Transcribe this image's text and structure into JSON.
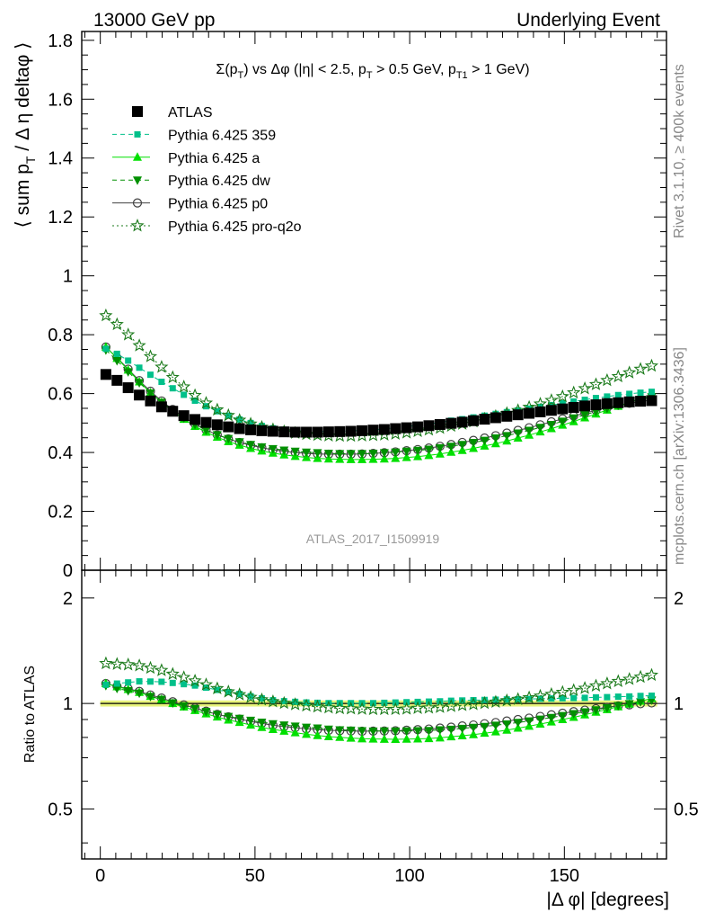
{
  "header": {
    "left": "13000 GeV pp",
    "right": "Underlying Event"
  },
  "side": {
    "rivet": "Rivet 3.1.10, ≥ 400k events",
    "mcplots": "mcplots.cern.ch [arXiv:1306.3436]"
  },
  "chart_data": {
    "type": "scatter",
    "title_parts": {
      "sigma": "Σ(p",
      "sub_t": "T",
      "mid": ") vs Δφ (|η| < 2.5, p",
      "sub_t2": "T",
      "mid2": " > 0.5 GeV, p",
      "sub_t1": "T1",
      "end": " > 1 GeV)"
    },
    "watermark": "ATLAS_2017_I1509919",
    "xlabel": "|Δ φ| [degrees]",
    "ylabel_parts": {
      "a": "⟨ sum p",
      "sub": "T",
      "b": " / Δ η deltaφ ⟩"
    },
    "ratio_ylabel": "Ratio to ATLAS",
    "xlim": [
      -6,
      183
    ],
    "xticks": [
      0,
      50,
      100,
      150
    ],
    "top_ylim": [
      0,
      1.83
    ],
    "top_yticks": [
      0,
      0.2,
      0.4,
      0.6,
      0.8,
      1,
      1.2,
      1.4,
      1.6,
      1.8
    ],
    "top_ytick_labels": [
      "0",
      "0.2",
      "0.4",
      "0.6",
      "0.8",
      "1",
      "1.2",
      "1.4",
      "1.6",
      "1.8"
    ],
    "ratio_ylim": [
      0.36,
      2.4
    ],
    "ratio_log": true,
    "ratio_yticks": [
      0.5,
      1,
      2
    ],
    "ratio_ytick_labels": [
      "0.5",
      "1",
      "2"
    ],
    "legend_position": "top-left",
    "legend": [
      {
        "key": "atlas",
        "label": "ATLAS"
      },
      {
        "key": "p359",
        "label": "Pythia 6.425 359"
      },
      {
        "key": "pa",
        "label": "Pythia 6.425 a"
      },
      {
        "key": "pdw",
        "label": "Pythia 6.425 dw"
      },
      {
        "key": "pp0",
        "label": "Pythia 6.425 p0"
      },
      {
        "key": "pq2o",
        "label": "Pythia 6.425 pro-q2o"
      }
    ],
    "styles": {
      "atlas": {
        "color": "#000000",
        "marker": "square-filled",
        "line": "none"
      },
      "p359": {
        "color": "#00c08a",
        "marker": "square-small",
        "line": "dashed"
      },
      "pa": {
        "color": "#00e000",
        "marker": "triangle-up",
        "line": "solid"
      },
      "pdw": {
        "color": "#009000",
        "marker": "triangle-down",
        "line": "dashed"
      },
      "pp0": {
        "color": "#404040",
        "marker": "circle-open",
        "line": "solid"
      },
      "pq2o": {
        "color": "#1a7a1a",
        "marker": "star-open",
        "line": "dotted"
      }
    },
    "x": [
      1.8,
      5.4,
      9.0,
      12.6,
      16.2,
      19.8,
      23.4,
      27.0,
      30.6,
      34.2,
      37.8,
      41.4,
      45.0,
      48.6,
      52.2,
      55.8,
      59.4,
      63.0,
      66.6,
      70.2,
      73.8,
      77.4,
      81.0,
      84.6,
      88.2,
      91.8,
      95.4,
      99.0,
      102.6,
      106.2,
      109.8,
      113.4,
      117.0,
      120.6,
      124.2,
      127.8,
      131.4,
      135.0,
      138.6,
      142.2,
      145.8,
      149.4,
      153.0,
      156.6,
      160.2,
      163.8,
      167.4,
      171.0,
      174.6,
      178.2
    ],
    "series": [
      {
        "key": "atlas",
        "name": "ATLAS",
        "values": [
          0.665,
          0.645,
          0.62,
          0.595,
          0.575,
          0.555,
          0.54,
          0.525,
          0.512,
          0.502,
          0.494,
          0.487,
          0.481,
          0.477,
          0.474,
          0.472,
          0.47,
          0.469,
          0.469,
          0.469,
          0.47,
          0.471,
          0.472,
          0.474,
          0.476,
          0.478,
          0.481,
          0.484,
          0.487,
          0.491,
          0.495,
          0.499,
          0.503,
          0.508,
          0.513,
          0.518,
          0.523,
          0.528,
          0.533,
          0.538,
          0.543,
          0.548,
          0.553,
          0.558,
          0.562,
          0.566,
          0.569,
          0.572,
          0.574,
          0.576
        ]
      },
      {
        "key": "p359",
        "name": "Pythia 6.425 359",
        "values": [
          0.752,
          0.735,
          0.712,
          0.688,
          0.664,
          0.64,
          0.618,
          0.596,
          0.576,
          0.557,
          0.54,
          0.525,
          0.512,
          0.5,
          0.49,
          0.482,
          0.477,
          0.474,
          0.472,
          0.471,
          0.471,
          0.472,
          0.473,
          0.475,
          0.477,
          0.48,
          0.484,
          0.488,
          0.492,
          0.497,
          0.502,
          0.508,
          0.513,
          0.519,
          0.525,
          0.531,
          0.537,
          0.543,
          0.549,
          0.555,
          0.561,
          0.567,
          0.573,
          0.579,
          0.585,
          0.59,
          0.595,
          0.599,
          0.603,
          0.606
        ]
      },
      {
        "key": "pa",
        "name": "Pythia 6.425 a",
        "values": [
          0.758,
          0.72,
          0.68,
          0.64,
          0.603,
          0.57,
          0.54,
          0.513,
          0.489,
          0.469,
          0.452,
          0.437,
          0.425,
          0.414,
          0.405,
          0.398,
          0.392,
          0.387,
          0.383,
          0.38,
          0.378,
          0.377,
          0.376,
          0.376,
          0.377,
          0.378,
          0.38,
          0.383,
          0.386,
          0.39,
          0.395,
          0.401,
          0.407,
          0.414,
          0.422,
          0.43,
          0.439,
          0.449,
          0.459,
          0.47,
          0.481,
          0.493,
          0.505,
          0.518,
          0.531,
          0.544,
          0.557,
          0.57,
          0.583,
          0.595
        ]
      },
      {
        "key": "pdw",
        "name": "Pythia 6.425 dw",
        "values": [
          0.748,
          0.712,
          0.674,
          0.637,
          0.602,
          0.57,
          0.542,
          0.517,
          0.495,
          0.476,
          0.46,
          0.447,
          0.436,
          0.427,
          0.419,
          0.413,
          0.408,
          0.404,
          0.401,
          0.399,
          0.397,
          0.396,
          0.396,
          0.396,
          0.397,
          0.399,
          0.401,
          0.404,
          0.407,
          0.411,
          0.416,
          0.421,
          0.427,
          0.434,
          0.441,
          0.449,
          0.457,
          0.466,
          0.475,
          0.485,
          0.495,
          0.506,
          0.517,
          0.528,
          0.539,
          0.55,
          0.561,
          0.571,
          0.58,
          0.589
        ]
      },
      {
        "key": "pp0",
        "name": "Pythia 6.425 p0",
        "values": [
          0.758,
          0.722,
          0.683,
          0.644,
          0.608,
          0.575,
          0.546,
          0.52,
          0.497,
          0.477,
          0.46,
          0.446,
          0.434,
          0.424,
          0.416,
          0.409,
          0.404,
          0.4,
          0.397,
          0.395,
          0.394,
          0.394,
          0.394,
          0.395,
          0.397,
          0.399,
          0.402,
          0.406,
          0.41,
          0.415,
          0.421,
          0.427,
          0.434,
          0.441,
          0.449,
          0.457,
          0.466,
          0.475,
          0.484,
          0.494,
          0.504,
          0.514,
          0.524,
          0.534,
          0.543,
          0.552,
          0.56,
          0.567,
          0.573,
          0.578
        ]
      },
      {
        "key": "pq2o",
        "name": "Pythia 6.425 pro-q2o",
        "values": [
          0.865,
          0.835,
          0.8,
          0.763,
          0.726,
          0.69,
          0.655,
          0.623,
          0.594,
          0.568,
          0.545,
          0.526,
          0.51,
          0.497,
          0.486,
          0.478,
          0.471,
          0.466,
          0.462,
          0.459,
          0.457,
          0.456,
          0.456,
          0.457,
          0.458,
          0.46,
          0.463,
          0.467,
          0.472,
          0.477,
          0.483,
          0.49,
          0.497,
          0.505,
          0.514,
          0.523,
          0.533,
          0.543,
          0.554,
          0.565,
          0.577,
          0.59,
          0.603,
          0.617,
          0.631,
          0.645,
          0.658,
          0.671,
          0.683,
          0.694
        ]
      }
    ]
  }
}
